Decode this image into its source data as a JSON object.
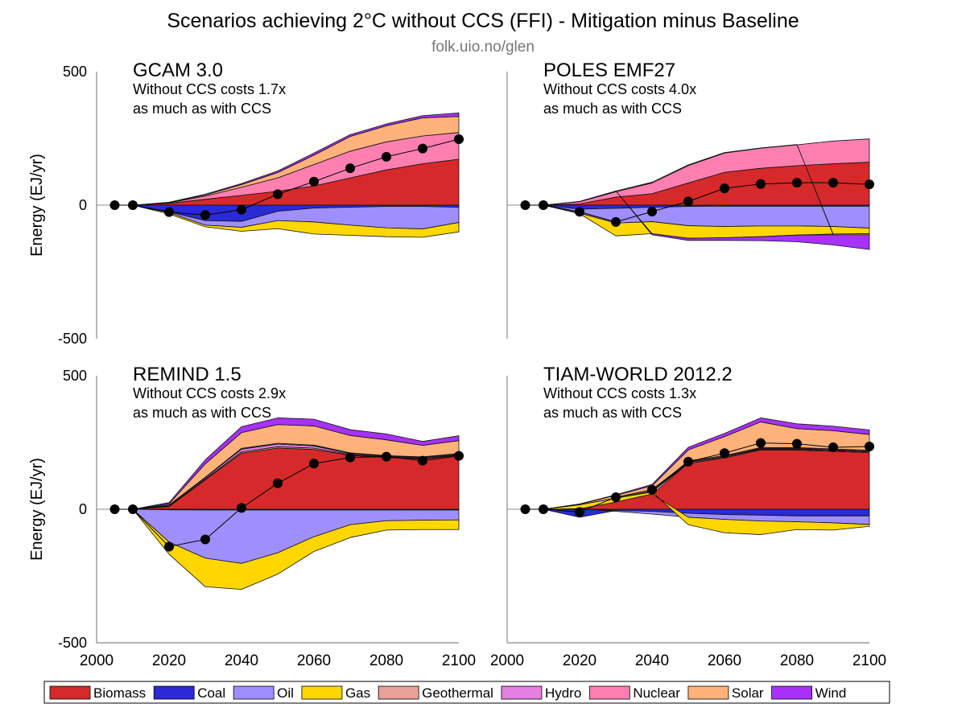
{
  "title": "Scenarios achieving 2°C without CCS (FFI) - Mitigation minus Baseline",
  "subtitle": "folk.uio.no/glen",
  "legend": [
    {
      "name": "Biomass",
      "color": "#d62a2a"
    },
    {
      "name": "Coal",
      "color": "#2a2ad6"
    },
    {
      "name": "Oil",
      "color": "#9f8ffc"
    },
    {
      "name": "Gas",
      "color": "#ffd700"
    },
    {
      "name": "Geothermal",
      "color": "#e8a09a"
    },
    {
      "name": "Hydro",
      "color": "#e57fe0"
    },
    {
      "name": "Nuclear",
      "color": "#ff80b0"
    },
    {
      "name": "Solar",
      "color": "#ffb27a"
    },
    {
      "name": "Wind",
      "color": "#a832fc"
    }
  ],
  "chart_data": [
    {
      "type": "area",
      "title": "GCAM 3.0",
      "note1": "Without CCS costs 1.7x",
      "note2": "as much as with CCS",
      "ylabel": "Energy (EJ/yr)",
      "ylim": [
        -500,
        500
      ],
      "yticks": [
        "500",
        "0",
        "-500"
      ],
      "x": [
        2005,
        2010,
        2020,
        2030,
        2040,
        2050,
        2060,
        2070,
        2080,
        2090,
        2100
      ],
      "series": {
        "Biomass": [
          0,
          0,
          7,
          22,
          37,
          52,
          72,
          102,
          132,
          155,
          172
        ],
        "Coal": [
          0,
          0,
          -25,
          -58,
          -61,
          -23,
          -11,
          -8,
          -5,
          -5,
          -8
        ],
        "Oil": [
          0,
          0,
          -3,
          -17,
          -22,
          -35,
          -52,
          -67,
          -80,
          -84,
          -57
        ],
        "Gas": [
          0,
          0,
          -5,
          -6,
          -15,
          -30,
          -45,
          -38,
          -33,
          -31,
          -35
        ],
        "Geothermal": [
          0,
          0,
          0,
          0,
          0,
          0,
          0,
          0,
          0,
          0,
          0
        ],
        "Hydro": [
          0,
          0,
          0,
          0,
          0,
          0,
          0,
          0,
          0,
          0,
          0
        ],
        "Nuclear": [
          0,
          0,
          2,
          12,
          30,
          50,
          80,
          100,
          105,
          104,
          100
        ],
        "Solar": [
          0,
          0,
          1,
          4,
          10,
          20,
          35,
          55,
          60,
          68,
          60
        ],
        "Wind": [
          0,
          0,
          1,
          3,
          4,
          6,
          8,
          7,
          7,
          8,
          13
        ]
      },
      "net": [
        0,
        0,
        -26,
        -37,
        -17,
        41,
        88,
        138,
        181,
        212,
        247
      ]
    },
    {
      "type": "area",
      "title": "POLES EMF27",
      "note1": "Without CCS costs 4.0x",
      "note2": "as much as with CCS",
      "ylabel": "",
      "ylim": [
        -500,
        500
      ],
      "yticks": [],
      "x": [
        2005,
        2010,
        2020,
        2030,
        2040,
        2050,
        2060,
        2070,
        2080,
        2090,
        2100
      ],
      "series": {
        "Biomass": [
          0,
          0,
          5,
          30,
          43,
          83,
          123,
          138,
          148,
          155,
          161
        ],
        "Coal": [
          0,
          0,
          -15,
          -12,
          -8,
          -5,
          -4,
          -4,
          -4,
          -4,
          -4
        ],
        "Oil": [
          0,
          0,
          -15,
          -55,
          -54,
          -72,
          -76,
          -74,
          -74,
          -76,
          -82
        ],
        "Gas": [
          0,
          0,
          -2,
          -48,
          -45,
          -47,
          -42,
          -40,
          -34,
          -28,
          -21
        ],
        "Geothermal": [
          0,
          0,
          0,
          0,
          0,
          0,
          0,
          0,
          0,
          0,
          0
        ],
        "Hydro": [
          0,
          0,
          0,
          0,
          0,
          0,
          0,
          0,
          0,
          0,
          0
        ],
        "Nuclear": [
          0,
          0,
          8,
          20,
          40,
          65,
          72,
          75,
          78,
          85,
          87
        ],
        "Solar": [
          0,
          0,
          1,
          3,
          3,
          3,
          2,
          1,
          1,
          -3,
          -4
        ],
        "Wind": [
          0,
          0,
          0,
          0,
          -4,
          -8,
          -10,
          -15,
          -25,
          -38,
          -55
        ]
      },
      "net": [
        0,
        0,
        -25,
        -63,
        -24,
        14,
        63,
        79,
        84,
        84,
        78
      ]
    },
    {
      "type": "area",
      "title": "REMIND 1.5",
      "note1": "Without CCS costs 2.9x",
      "note2": "as much as with CCS",
      "ylabel": "Energy (EJ/yr)",
      "ylim": [
        -500,
        500
      ],
      "yticks": [
        "500",
        "0",
        "-500"
      ],
      "x": [
        2005,
        2010,
        2020,
        2030,
        2040,
        2050,
        2060,
        2070,
        2080,
        2090,
        2100
      ],
      "series": {
        "Biomass": [
          0,
          0,
          10,
          110,
          210,
          229,
          224,
          202,
          194,
          189,
          202
        ],
        "Coal": [
          0,
          0,
          -2,
          -3,
          -3,
          -3,
          -3,
          -3,
          -3,
          -3,
          -3
        ],
        "Oil": [
          0,
          0,
          -121,
          -180,
          -200,
          -160,
          -100,
          -55,
          -40,
          -38,
          -37
        ],
        "Gas": [
          0,
          0,
          -45,
          -107,
          -97,
          -80,
          -55,
          -48,
          -35,
          -35,
          -36
        ],
        "Geothermal": [
          0,
          0,
          2,
          3,
          5,
          5,
          5,
          3,
          2,
          2,
          2
        ],
        "Hydro": [
          0,
          0,
          3,
          5,
          10,
          10,
          8,
          4,
          3,
          3,
          3
        ],
        "Nuclear": [
          0,
          0,
          1,
          2,
          3,
          3,
          3,
          2,
          2,
          2,
          2
        ],
        "Solar": [
          0,
          0,
          4,
          50,
          59,
          70,
          72,
          65,
          59,
          43,
          48
        ],
        "Wind": [
          0,
          0,
          5,
          15,
          22,
          25,
          25,
          22,
          22,
          15,
          18
        ]
      },
      "net": [
        0,
        0,
        -140,
        -113,
        5,
        97,
        171,
        194,
        197,
        182,
        200
      ]
    },
    {
      "type": "area",
      "title": "TIAM-WORLD 2012.2",
      "note1": "Without CCS costs 1.3x",
      "note2": "as much as with CCS",
      "ylabel": "",
      "ylim": [
        -500,
        500
      ],
      "yticks": [],
      "x": [
        2005,
        2010,
        2020,
        2030,
        2040,
        2050,
        2060,
        2070,
        2080,
        2090,
        2100
      ],
      "series": {
        "Biomass": [
          0,
          0,
          2,
          27,
          57,
          172,
          192,
          222,
          222,
          217,
          212
        ],
        "Coal": [
          0,
          0,
          -30,
          -5,
          -8,
          -15,
          -20,
          -22,
          -25,
          -25,
          -25
        ],
        "Oil": [
          0,
          0,
          0,
          -3,
          -10,
          -15,
          -18,
          -22,
          -22,
          -26,
          -32
        ],
        "Gas": [
          0,
          0,
          15,
          15,
          8,
          -28,
          -50,
          -51,
          -29,
          -27,
          -7
        ],
        "Geothermal": [
          0,
          0,
          0,
          0,
          1,
          3,
          3,
          3,
          3,
          3,
          3
        ],
        "Hydro": [
          0,
          0,
          0,
          0,
          1,
          3,
          3,
          3,
          3,
          3,
          3
        ],
        "Nuclear": [
          0,
          0,
          0,
          0,
          1,
          3,
          3,
          3,
          3,
          3,
          3
        ],
        "Solar": [
          0,
          0,
          2,
          10,
          20,
          41,
          71,
          96,
          71,
          68,
          59
        ],
        "Wind": [
          0,
          0,
          1,
          2,
          5,
          10,
          12,
          15,
          18,
          17,
          17
        ]
      },
      "net": [
        0,
        0,
        -10,
        45,
        73,
        178,
        210,
        248,
        245,
        232,
        235
      ]
    }
  ],
  "xticks": [
    "2000",
    "2020",
    "2040",
    "2060",
    "2080",
    "2100"
  ],
  "xlim": [
    2000,
    2100
  ]
}
